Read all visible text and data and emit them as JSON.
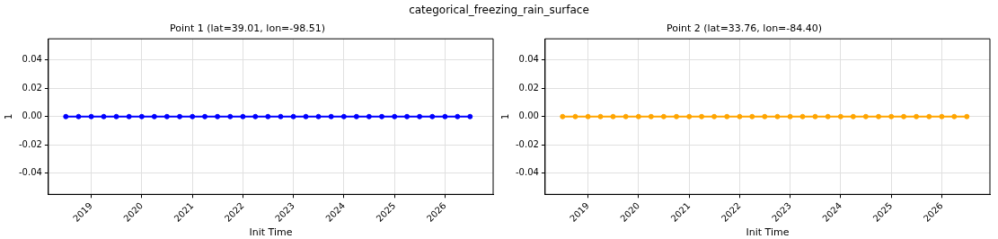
{
  "chart_data": [
    {
      "type": "line",
      "title": "Point 1 (lat=39.01, lon=-98.51)",
      "xlabel": "Init Time",
      "ylabel": "1",
      "annotations": [
        "categorical_freezing_rain_surface"
      ],
      "x": [
        "2018-07",
        "2018-10",
        "2019-01",
        "2019-04",
        "2019-07",
        "2019-10",
        "2020-01",
        "2020-04",
        "2020-07",
        "2020-10",
        "2021-01",
        "2021-04",
        "2021-07",
        "2021-10",
        "2022-01",
        "2022-04",
        "2022-07",
        "2022-10",
        "2023-01",
        "2023-04",
        "2023-07",
        "2023-10",
        "2024-01",
        "2024-04",
        "2024-07",
        "2024-10",
        "2025-01",
        "2025-04",
        "2025-07",
        "2025-10",
        "2026-01",
        "2026-04",
        "2026-07"
      ],
      "series": [
        {
          "color": "#0000ff",
          "values": [
            0,
            0,
            0,
            0,
            0,
            0,
            0,
            0,
            0,
            0,
            0,
            0,
            0,
            0,
            0,
            0,
            0,
            0,
            0,
            0,
            0,
            0,
            0,
            0,
            0,
            0,
            0,
            0,
            0,
            0,
            0,
            0,
            0
          ]
        }
      ],
      "xlim": [
        "2018-02-25",
        "2026-12-15"
      ],
      "xticks": [
        "2019",
        "2020",
        "2021",
        "2022",
        "2023",
        "2024",
        "2025",
        "2026"
      ],
      "ylim": [
        -0.055,
        0.055
      ],
      "yticks": [
        {
          "value": -0.04,
          "label": "-0.04"
        },
        {
          "value": -0.02,
          "label": "-0.02"
        },
        {
          "value": 0,
          "label": "0.00"
        },
        {
          "value": 0.02,
          "label": "0.02"
        },
        {
          "value": 0.04,
          "label": "0.04"
        }
      ],
      "grid": true,
      "legend": false,
      "marker": "circle",
      "line_style": "solid"
    },
    {
      "type": "line",
      "title": "Point 2 (lat=33.76, lon=-84.40)",
      "xlabel": "Init Time",
      "ylabel": "1",
      "x": [
        "2018-07",
        "2018-10",
        "2019-01",
        "2019-04",
        "2019-07",
        "2019-10",
        "2020-01",
        "2020-04",
        "2020-07",
        "2020-10",
        "2021-01",
        "2021-04",
        "2021-07",
        "2021-10",
        "2022-01",
        "2022-04",
        "2022-07",
        "2022-10",
        "2023-01",
        "2023-04",
        "2023-07",
        "2023-10",
        "2024-01",
        "2024-04",
        "2024-07",
        "2024-10",
        "2025-01",
        "2025-04",
        "2025-07",
        "2025-10",
        "2026-01",
        "2026-04",
        "2026-07"
      ],
      "series": [
        {
          "color": "#ffa500",
          "values": [
            0,
            0,
            0,
            0,
            0,
            0,
            0,
            0,
            0,
            0,
            0,
            0,
            0,
            0,
            0,
            0,
            0,
            0,
            0,
            0,
            0,
            0,
            0,
            0,
            0,
            0,
            0,
            0,
            0,
            0,
            0,
            0,
            0
          ]
        }
      ],
      "xlim": [
        "2018-02-25",
        "2026-12-15"
      ],
      "xticks": [
        "2019",
        "2020",
        "2021",
        "2022",
        "2023",
        "2024",
        "2025",
        "2026"
      ],
      "ylim": [
        -0.055,
        0.055
      ],
      "yticks": [
        {
          "value": -0.04,
          "label": "-0.04"
        },
        {
          "value": -0.02,
          "label": "-0.02"
        },
        {
          "value": 0,
          "label": "0.00"
        },
        {
          "value": 0.02,
          "label": "0.02"
        },
        {
          "value": 0.04,
          "label": "0.04"
        }
      ],
      "grid": true,
      "legend": false,
      "marker": "circle",
      "line_style": "solid"
    }
  ]
}
